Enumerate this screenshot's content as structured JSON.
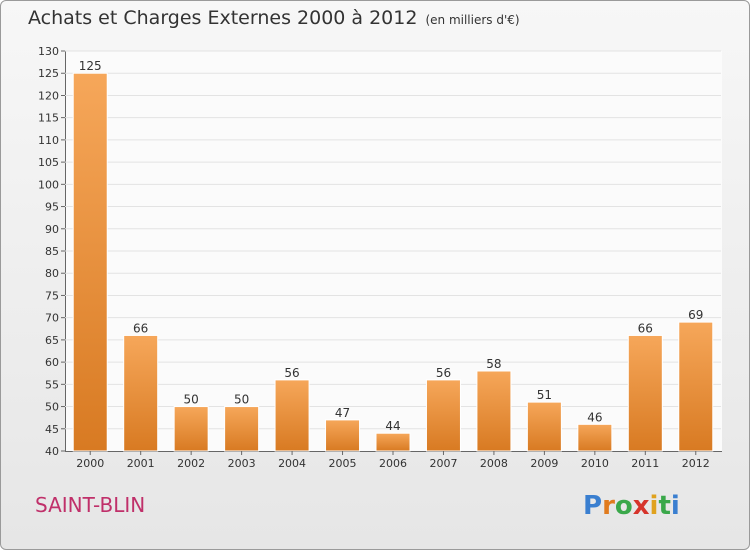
{
  "title": "Achats et Charges Externes 2000 à 2012",
  "unit": "(en milliers d'€)",
  "commune": "SAINT-BLIN",
  "logo": {
    "letters": [
      "P",
      "r",
      "o",
      "x",
      "i",
      "t",
      "i"
    ],
    "colors": [
      "#3a7fd0",
      "#e07b1e",
      "#3aa84a",
      "#d6342b",
      "#e0a21e",
      "#3aa84a",
      "#3a7fd0"
    ]
  },
  "colors": {
    "bar_light": "#f6a75a",
    "bar_dark": "#d87a22",
    "grid": "#e3e3e3",
    "title_accent": "#c0306a"
  },
  "chart_data": {
    "type": "bar",
    "categories": [
      "2000",
      "2001",
      "2002",
      "2003",
      "2004",
      "2005",
      "2006",
      "2007",
      "2008",
      "2009",
      "2010",
      "2011",
      "2012"
    ],
    "values": [
      125,
      66,
      50,
      50,
      56,
      47,
      44,
      56,
      58,
      51,
      46,
      66,
      69
    ],
    "ylim": [
      40,
      130
    ],
    "yticks": [
      40,
      45,
      50,
      55,
      60,
      65,
      70,
      75,
      80,
      85,
      90,
      95,
      100,
      105,
      110,
      115,
      120,
      125,
      130
    ],
    "grid": true,
    "data_labels": true
  }
}
